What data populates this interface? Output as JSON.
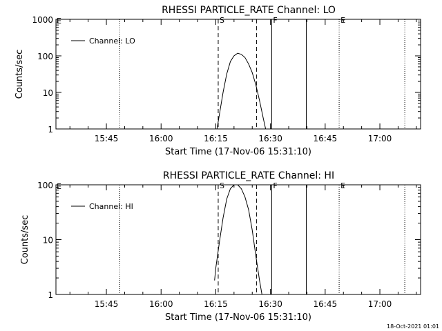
{
  "chart_data": [
    {
      "type": "line",
      "title": "RHESSI PARTICLE_RATE Channel: LO",
      "xlabel": "Start Time (17-Nov-06 15:31:10)",
      "ylabel": "Counts/sec",
      "yscale": "log",
      "xlim": [
        "15:31:10",
        "17:11:10"
      ],
      "ylim": [
        1,
        1000
      ],
      "xticks": [
        "15:45",
        "16:00",
        "16:15",
        "16:30",
        "16:45",
        "17:00"
      ],
      "yticks": [
        "1",
        "10",
        "100",
        "1000"
      ],
      "legend": "top-left",
      "grid": false,
      "series": [
        {
          "name": "Channel: LO",
          "x": [
            "16:15:20",
            "16:16:00",
            "16:17:00",
            "16:18:00",
            "16:19:00",
            "16:20:00",
            "16:21:00",
            "16:22:00",
            "16:23:00",
            "16:24:00",
            "16:25:00",
            "16:26:00",
            "16:27:00",
            "16:28:00",
            "16:28:40"
          ],
          "y": [
            1.0,
            2.5,
            10,
            32,
            70,
            100,
            118,
            110,
            90,
            60,
            35,
            16,
            6,
            2,
            1.0
          ]
        }
      ],
      "markers": [
        {
          "label": "S",
          "time": "16:15:40",
          "style": "dashed"
        },
        {
          "label": "",
          "time": "16:26:10",
          "style": "dashed"
        },
        {
          "label": "F",
          "time": "16:30:20",
          "style": "solid"
        },
        {
          "label": "",
          "time": "16:39:50",
          "style": "solid"
        },
        {
          "label": "",
          "time": "15:48:40",
          "style": "dotted"
        },
        {
          "label": "E",
          "time": "16:48:50",
          "style": "dotted"
        },
        {
          "label": "",
          "time": "17:06:50",
          "style": "dotted"
        }
      ]
    },
    {
      "type": "line",
      "title": "RHESSI PARTICLE_RATE Channel: HI",
      "xlabel": "Start Time (17-Nov-06 15:31:10)",
      "ylabel": "Counts/sec",
      "yscale": "log",
      "xlim": [
        "15:31:10",
        "17:11:10"
      ],
      "ylim": [
        1,
        100
      ],
      "xticks": [
        "15:45",
        "16:00",
        "16:15",
        "16:30",
        "16:45",
        "17:00"
      ],
      "yticks": [
        "1",
        "10",
        "100"
      ],
      "legend": "top-left",
      "grid": false,
      "series": [
        {
          "name": "Channel: HI",
          "x": [
            "16:14:40",
            "16:15:00",
            "16:16:00",
            "16:17:00",
            "16:18:00",
            "16:19:00",
            "16:20:00",
            "16:21:00",
            "16:22:00",
            "16:23:00",
            "16:24:00",
            "16:25:00",
            "16:26:00",
            "16:27:00",
            "16:27:40"
          ],
          "y": [
            1.8,
            3,
            9,
            25,
            55,
            85,
            100,
            100,
            85,
            60,
            35,
            15,
            5,
            1.8,
            1.0
          ]
        }
      ],
      "markers": [
        {
          "label": "S",
          "time": "16:15:40",
          "style": "dashed"
        },
        {
          "label": "",
          "time": "16:26:10",
          "style": "dashed"
        },
        {
          "label": "F",
          "time": "16:30:20",
          "style": "solid"
        },
        {
          "label": "",
          "time": "16:39:50",
          "style": "solid"
        },
        {
          "label": "",
          "time": "15:48:40",
          "style": "dotted"
        },
        {
          "label": "E",
          "time": "16:48:50",
          "style": "dotted"
        },
        {
          "label": "",
          "time": "17:06:50",
          "style": "dotted"
        }
      ]
    }
  ],
  "footer": {
    "timestamp": "18-Oct-2021 01:01"
  }
}
